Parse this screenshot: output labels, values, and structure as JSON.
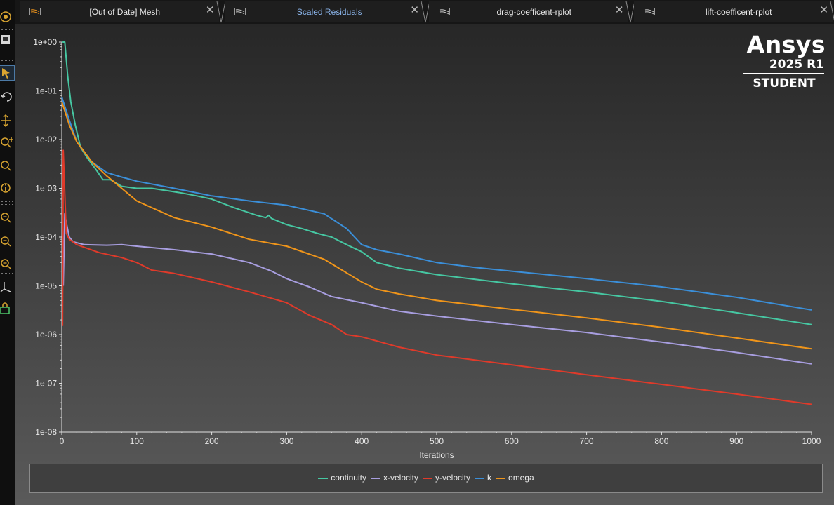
{
  "tabs": [
    {
      "label": "[Out of Date] Mesh",
      "active": false
    },
    {
      "label": "Scaled Residuals",
      "active": true
    },
    {
      "label": "drag-coefficent-rplot",
      "active": false
    },
    {
      "label": "lift-coefficent-rplot",
      "active": false
    }
  ],
  "toolbar": {
    "icons": [
      "display-settings-icon",
      "save-picture-icon",
      "select-arrow-icon",
      "rotate-icon",
      "pan-icon",
      "zoom-in-icon",
      "zoom-box-icon",
      "probe-info-icon",
      "zoom-to-fit-icon",
      "zoom-out-icon",
      "zoom-previous-icon",
      "axes-icon",
      "view-lock-icon"
    ],
    "selected": "select-arrow-icon"
  },
  "brand": {
    "name": "Ansys",
    "version": "2025 R1",
    "edition": "STUDENT"
  },
  "chart_data": {
    "type": "line",
    "xlabel": "Iterations",
    "ylabel": "",
    "yscale": "log",
    "xlim": [
      0,
      1000
    ],
    "ylim": [
      1e-08,
      1
    ],
    "xticks": [
      0,
      100,
      200,
      300,
      400,
      500,
      600,
      700,
      800,
      900,
      1000
    ],
    "yticks": [
      {
        "value": 1,
        "label": "1e+00"
      },
      {
        "value": 0.1,
        "label": "1e-01"
      },
      {
        "value": 0.01,
        "label": "1e-02"
      },
      {
        "value": 0.001,
        "label": "1e-03"
      },
      {
        "value": 0.0001,
        "label": "1e-04"
      },
      {
        "value": 1e-05,
        "label": "1e-05"
      },
      {
        "value": 1e-06,
        "label": "1e-06"
      },
      {
        "value": 1e-07,
        "label": "1e-07"
      },
      {
        "value": 1e-08,
        "label": "1e-08"
      }
    ],
    "legend_position": "bottom",
    "series": [
      {
        "name": "continuity",
        "color": "#46c7a2",
        "points": [
          [
            1,
            1.0
          ],
          [
            4,
            1.0
          ],
          [
            8,
            0.2
          ],
          [
            12,
            0.06
          ],
          [
            18,
            0.02
          ],
          [
            25,
            0.007
          ],
          [
            35,
            0.004
          ],
          [
            45,
            0.0025
          ],
          [
            55,
            0.0015
          ],
          [
            65,
            0.0015
          ],
          [
            80,
            0.0011
          ],
          [
            100,
            0.001
          ],
          [
            120,
            0.001
          ],
          [
            140,
            0.0009
          ],
          [
            160,
            0.0008
          ],
          [
            180,
            0.0007
          ],
          [
            200,
            0.0006
          ],
          [
            230,
            0.0004
          ],
          [
            260,
            0.00028
          ],
          [
            272,
            0.00025
          ],
          [
            276,
            0.00028
          ],
          [
            280,
            0.00024
          ],
          [
            300,
            0.00018
          ],
          [
            320,
            0.00015
          ],
          [
            340,
            0.00012
          ],
          [
            360,
            0.0001
          ],
          [
            380,
            7e-05
          ],
          [
            400,
            5e-05
          ],
          [
            420,
            3e-05
          ],
          [
            450,
            2.3e-05
          ],
          [
            500,
            1.7e-05
          ],
          [
            600,
            1.1e-05
          ],
          [
            700,
            7.5e-06
          ],
          [
            800,
            4.8e-06
          ],
          [
            900,
            2.8e-06
          ],
          [
            1000,
            1.6e-06
          ]
        ]
      },
      {
        "name": "x-velocity",
        "color": "#a89ee0",
        "points": [
          [
            2,
            1e-05
          ],
          [
            4,
            0.0003
          ],
          [
            6,
            0.0002
          ],
          [
            10,
            0.0001
          ],
          [
            15,
            8e-05
          ],
          [
            30,
            7e-05
          ],
          [
            60,
            6.8e-05
          ],
          [
            80,
            7e-05
          ],
          [
            100,
            6.5e-05
          ],
          [
            150,
            5.5e-05
          ],
          [
            200,
            4.5e-05
          ],
          [
            250,
            3e-05
          ],
          [
            280,
            2e-05
          ],
          [
            300,
            1.4e-05
          ],
          [
            330,
            9.5e-06
          ],
          [
            360,
            6e-06
          ],
          [
            400,
            4.5e-06
          ],
          [
            450,
            3e-06
          ],
          [
            500,
            2.4e-06
          ],
          [
            600,
            1.6e-06
          ],
          [
            700,
            1.1e-06
          ],
          [
            800,
            7e-07
          ],
          [
            900,
            4.3e-07
          ],
          [
            1000,
            2.5e-07
          ]
        ]
      },
      {
        "name": "y-velocity",
        "color": "#e03a2a",
        "points": [
          [
            1,
            1.5e-06
          ],
          [
            2,
            0.006
          ],
          [
            4,
            0.0008
          ],
          [
            6,
            0.00012
          ],
          [
            10,
            9e-05
          ],
          [
            20,
            7e-05
          ],
          [
            50,
            4.8e-05
          ],
          [
            80,
            3.8e-05
          ],
          [
            100,
            3e-05
          ],
          [
            120,
            2.1e-05
          ],
          [
            150,
            1.8e-05
          ],
          [
            200,
            1.2e-05
          ],
          [
            250,
            7.5e-06
          ],
          [
            300,
            4.5e-06
          ],
          [
            330,
            2.5e-06
          ],
          [
            360,
            1.6e-06
          ],
          [
            380,
            1e-06
          ],
          [
            400,
            9e-07
          ],
          [
            450,
            5.5e-07
          ],
          [
            500,
            3.8e-07
          ],
          [
            600,
            2.4e-07
          ],
          [
            700,
            1.5e-07
          ],
          [
            800,
            9.5e-08
          ],
          [
            900,
            6e-08
          ],
          [
            1000,
            3.7e-08
          ]
        ]
      },
      {
        "name": "k",
        "color": "#3b8fd9",
        "points": [
          [
            0,
            0.075
          ],
          [
            10,
            0.025
          ],
          [
            20,
            0.009
          ],
          [
            40,
            0.0035
          ],
          [
            60,
            0.0021
          ],
          [
            80,
            0.0017
          ],
          [
            100,
            0.0014
          ],
          [
            150,
            0.001
          ],
          [
            200,
            0.0007
          ],
          [
            250,
            0.00055
          ],
          [
            300,
            0.00045
          ],
          [
            350,
            0.0003
          ],
          [
            380,
            0.00015
          ],
          [
            400,
            7e-05
          ],
          [
            420,
            5.5e-05
          ],
          [
            450,
            4.5e-05
          ],
          [
            500,
            3e-05
          ],
          [
            550,
            2.4e-05
          ],
          [
            600,
            2e-05
          ],
          [
            700,
            1.4e-05
          ],
          [
            800,
            9.5e-06
          ],
          [
            900,
            5.8e-06
          ],
          [
            1000,
            3.2e-06
          ]
        ]
      },
      {
        "name": "omega",
        "color": "#f0951a",
        "points": [
          [
            0,
            0.06
          ],
          [
            10,
            0.02
          ],
          [
            20,
            0.009
          ],
          [
            40,
            0.0035
          ],
          [
            60,
            0.0018
          ],
          [
            80,
            0.001
          ],
          [
            100,
            0.00055
          ],
          [
            150,
            0.00025
          ],
          [
            200,
            0.00016
          ],
          [
            250,
            9e-05
          ],
          [
            300,
            6.5e-05
          ],
          [
            350,
            3.5e-05
          ],
          [
            400,
            1.2e-05
          ],
          [
            420,
            8.5e-06
          ],
          [
            450,
            6.8e-06
          ],
          [
            500,
            5e-06
          ],
          [
            600,
            3.3e-06
          ],
          [
            700,
            2.2e-06
          ],
          [
            800,
            1.4e-06
          ],
          [
            900,
            8.5e-07
          ],
          [
            1000,
            5.1e-07
          ]
        ]
      }
    ]
  }
}
